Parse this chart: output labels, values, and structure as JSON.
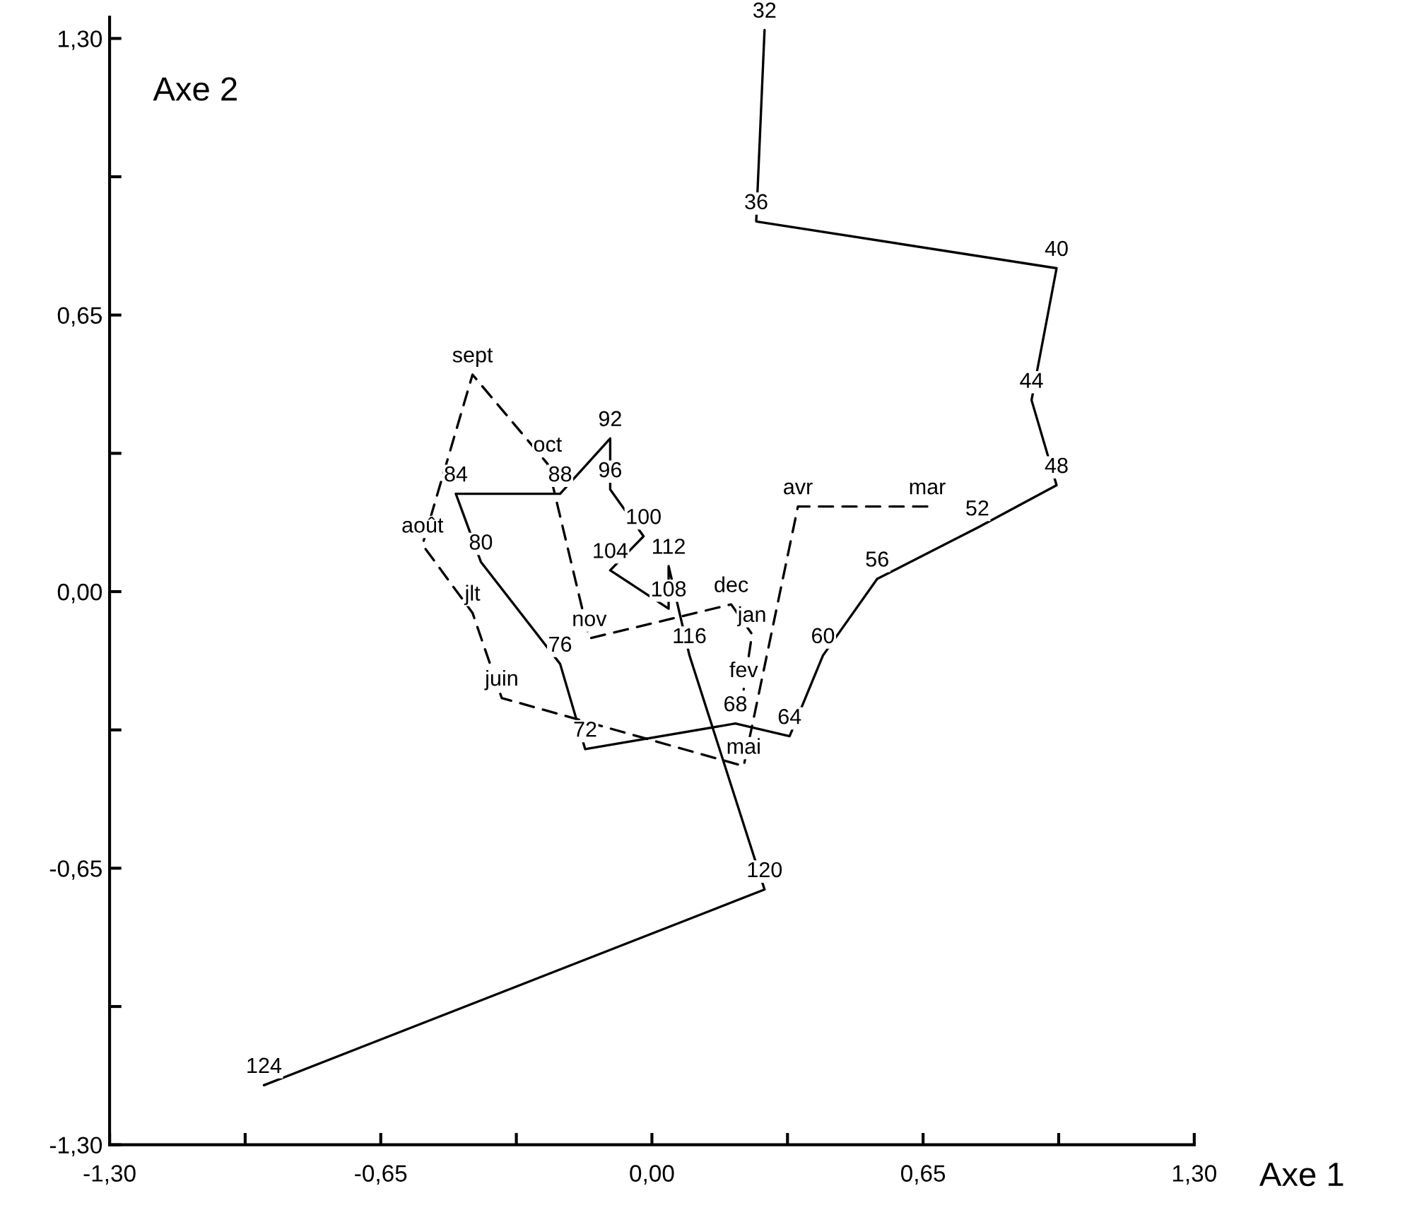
{
  "chart_data": {
    "type": "line",
    "xlabel": "Axe 1",
    "ylabel": "Axe 2",
    "marker": "none",
    "grid": false,
    "legend": false,
    "xlim": [
      -1.3,
      1.3
    ],
    "ylim": [
      -1.3,
      1.35
    ],
    "xticks": [
      {
        "value": -1.3,
        "label": "-1,30"
      },
      {
        "value": -0.975,
        "label": null
      },
      {
        "value": -0.65,
        "label": "-0,65"
      },
      {
        "value": -0.325,
        "label": null
      },
      {
        "value": 0,
        "label": "0,00"
      },
      {
        "value": 0.325,
        "label": null
      },
      {
        "value": 0.65,
        "label": "0,65"
      },
      {
        "value": 0.975,
        "label": null
      },
      {
        "value": 1.3,
        "label": "1,30"
      }
    ],
    "yticks": [
      {
        "value": -1.3,
        "label": "-1,30"
      },
      {
        "value": -0.975,
        "label": null
      },
      {
        "value": -0.65,
        "label": "-0,65"
      },
      {
        "value": -0.325,
        "label": null
      },
      {
        "value": 0,
        "label": "0,00"
      },
      {
        "value": 0.325,
        "label": null
      },
      {
        "value": 0.65,
        "label": "0,65"
      },
      {
        "value": 0.975,
        "label": null
      },
      {
        "value": 1.3,
        "label": "1,30"
      }
    ],
    "series": [
      {
        "color": "#000000",
        "line_style": "solid",
        "x": [
          0.27,
          0.25,
          0.97,
          0.91,
          0.97,
          0.78,
          0.54,
          0.41,
          0.33,
          0.2,
          -0.16,
          -0.22,
          -0.41,
          -0.47,
          -0.22,
          -0.1,
          -0.1,
          -0.02,
          -0.1,
          0.04,
          0.04,
          0.09,
          0.27,
          -0.93
        ],
        "values": [
          1.32,
          0.87,
          0.76,
          0.45,
          0.25,
          0.15,
          0.03,
          -0.15,
          -0.34,
          -0.31,
          -0.37,
          -0.17,
          0.07,
          0.23,
          0.23,
          0.36,
          0.24,
          0.13,
          0.05,
          -0.04,
          0.06,
          -0.15,
          -0.7,
          -1.16
        ]
      },
      {
        "color": "#000000",
        "line_style": "dashed",
        "x": [
          0.66,
          0.35,
          0.22,
          -0.36,
          -0.43,
          -0.55,
          -0.43,
          -0.25,
          -0.15,
          0.19,
          0.24,
          0.22
        ],
        "values": [
          0.2,
          0.2,
          -0.41,
          -0.25,
          -0.05,
          0.11,
          0.51,
          0.3,
          -0.11,
          -0.03,
          -0.1,
          -0.23
        ]
      }
    ],
    "annotations": [
      {
        "text": "32",
        "x": 0.27,
        "y": 1.32
      },
      {
        "text": "36",
        "x": 0.25,
        "y": 0.87
      },
      {
        "text": "40",
        "x": 0.97,
        "y": 0.76
      },
      {
        "text": "44",
        "x": 0.91,
        "y": 0.45
      },
      {
        "text": "48",
        "x": 0.97,
        "y": 0.25
      },
      {
        "text": "52",
        "x": 0.78,
        "y": 0.15
      },
      {
        "text": "56",
        "x": 0.54,
        "y": 0.03
      },
      {
        "text": "60",
        "x": 0.41,
        "y": -0.15
      },
      {
        "text": "64",
        "x": 0.33,
        "y": -0.34
      },
      {
        "text": "68",
        "x": 0.2,
        "y": -0.31
      },
      {
        "text": "72",
        "x": -0.16,
        "y": -0.37
      },
      {
        "text": "76",
        "x": -0.22,
        "y": -0.17
      },
      {
        "text": "80",
        "x": -0.41,
        "y": 0.07
      },
      {
        "text": "84",
        "x": -0.47,
        "y": 0.23
      },
      {
        "text": "88",
        "x": -0.22,
        "y": 0.23
      },
      {
        "text": "92",
        "x": -0.1,
        "y": 0.36
      },
      {
        "text": "96",
        "x": -0.1,
        "y": 0.24
      },
      {
        "text": "100",
        "x": -0.02,
        "y": 0.13
      },
      {
        "text": "104",
        "x": -0.1,
        "y": 0.05
      },
      {
        "text": "108",
        "x": 0.04,
        "y": -0.04
      },
      {
        "text": "112",
        "x": 0.04,
        "y": 0.06
      },
      {
        "text": "116",
        "x": 0.09,
        "y": -0.15
      },
      {
        "text": "120",
        "x": 0.27,
        "y": -0.7
      },
      {
        "text": "124",
        "x": -0.93,
        "y": -1.16
      },
      {
        "text": "mar",
        "x": 0.66,
        "y": 0.2
      },
      {
        "text": "avr",
        "x": 0.35,
        "y": 0.2
      },
      {
        "text": "mai",
        "x": 0.22,
        "y": -0.41
      },
      {
        "text": "juin",
        "x": -0.36,
        "y": -0.25
      },
      {
        "text": "jlt",
        "x": -0.43,
        "y": -0.05
      },
      {
        "text": "août",
        "x": -0.55,
        "y": 0.11
      },
      {
        "text": "sept",
        "x": -0.43,
        "y": 0.51
      },
      {
        "text": "oct",
        "x": -0.25,
        "y": 0.3
      },
      {
        "text": "nov",
        "x": -0.15,
        "y": -0.11
      },
      {
        "text": "dec",
        "x": 0.19,
        "y": -0.03
      },
      {
        "text": "jan",
        "x": 0.24,
        "y": -0.1
      },
      {
        "text": "fev",
        "x": 0.22,
        "y": -0.23
      }
    ]
  }
}
